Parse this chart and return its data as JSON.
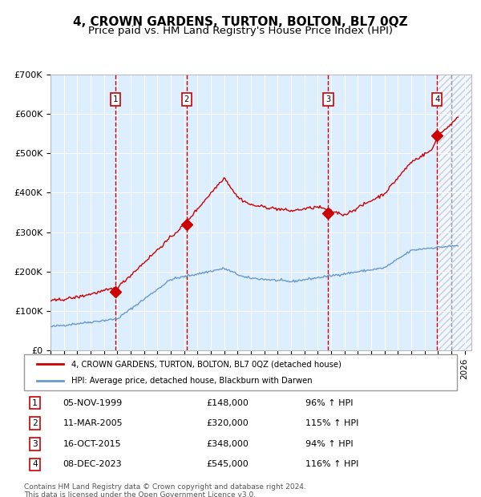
{
  "title": "4, CROWN GARDENS, TURTON, BOLTON, BL7 0QZ",
  "subtitle": "Price paid vs. HM Land Registry's House Price Index (HPI)",
  "ylim": [
    0,
    700000
  ],
  "yticks": [
    0,
    100000,
    200000,
    300000,
    400000,
    500000,
    600000,
    700000
  ],
  "ytick_labels": [
    "£0",
    "£100K",
    "£200K",
    "£300K",
    "£400K",
    "£500K",
    "£600K",
    "£700K"
  ],
  "xlim_start": 1995.0,
  "xlim_end": 2026.5,
  "sale_dates": [
    1999.843,
    2005.19,
    2015.79,
    2023.927
  ],
  "sale_prices": [
    148000,
    320000,
    348000,
    545000
  ],
  "sale_labels": [
    "1",
    "2",
    "3",
    "4"
  ],
  "red_line_color": "#cc0000",
  "blue_line_color": "#6699cc",
  "dot_color": "#cc0000",
  "dashed_line_color_red": "#cc0000",
  "background_color": "#ddeeff",
  "grid_color": "#ffffff",
  "legend_label_red": "4, CROWN GARDENS, TURTON, BOLTON, BL7 0QZ (detached house)",
  "legend_label_blue": "HPI: Average price, detached house, Blackburn with Darwen",
  "table_rows": [
    [
      "1",
      "05-NOV-1999",
      "£148,000",
      "96% ↑ HPI"
    ],
    [
      "2",
      "11-MAR-2005",
      "£320,000",
      "115% ↑ HPI"
    ],
    [
      "3",
      "16-OCT-2015",
      "£348,000",
      "94% ↑ HPI"
    ],
    [
      "4",
      "08-DEC-2023",
      "£545,000",
      "116% ↑ HPI"
    ]
  ],
  "footer": "Contains HM Land Registry data © Crown copyright and database right 2024.\nThis data is licensed under the Open Government Licence v3.0.",
  "title_fontsize": 11,
  "subtitle_fontsize": 9.5,
  "tick_fontsize": 8,
  "future_start": 2025.0
}
